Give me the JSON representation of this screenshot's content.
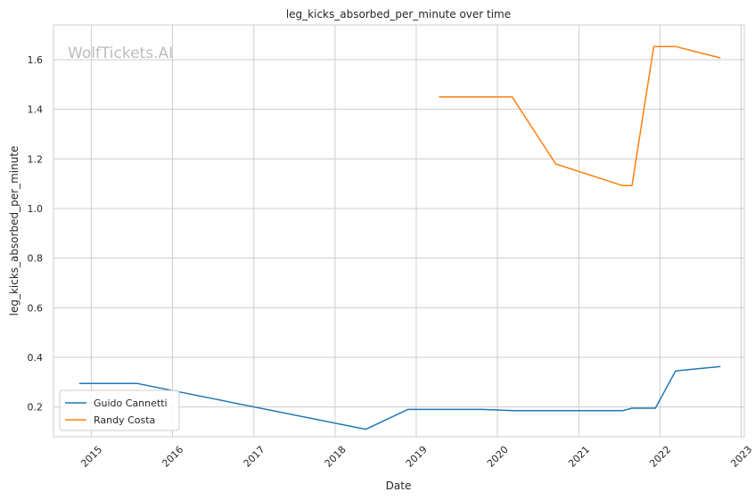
{
  "chart_data": {
    "type": "line",
    "title": "leg_kicks_absorbed_per_minute over time",
    "xlabel": "Date",
    "ylabel": "leg_kicks_absorbed_per_minute",
    "watermark": "WolfTickets.AI",
    "x_ticks": [
      "2015",
      "2016",
      "2017",
      "2018",
      "2019",
      "2020",
      "2021",
      "2022",
      "2023"
    ],
    "y_ticks": [
      "0.2",
      "0.4",
      "0.6",
      "0.8",
      "1.0",
      "1.2",
      "1.4",
      "1.6"
    ],
    "xlim": [
      "2014-07-15",
      "2023-01-15"
    ],
    "ylim": [
      0.08,
      1.74
    ],
    "grid": true,
    "legend_position": "lower-left",
    "series": [
      {
        "name": "Guido Cannetti",
        "color": "#1f77b4",
        "points": [
          [
            "2014-11-08",
            0.295
          ],
          [
            "2015-07-25",
            0.295
          ],
          [
            "2018-05-19",
            0.11
          ],
          [
            "2018-11-24",
            0.19
          ],
          [
            "2019-10-26",
            0.19
          ],
          [
            "2020-03-14",
            0.185
          ],
          [
            "2021-07-17",
            0.185
          ],
          [
            "2021-08-28",
            0.195
          ],
          [
            "2021-12-11",
            0.195
          ],
          [
            "2022-03-12",
            0.345
          ],
          [
            "2022-09-30",
            0.363
          ]
        ]
      },
      {
        "name": "Randy Costa",
        "color": "#ff7f0e",
        "points": [
          [
            "2019-04-13",
            1.45
          ],
          [
            "2020-03-07",
            1.45
          ],
          [
            "2020-09-19",
            1.18
          ],
          [
            "2021-07-17",
            1.092
          ],
          [
            "2021-08-28",
            1.092
          ],
          [
            "2021-12-04",
            1.653
          ],
          [
            "2022-03-12",
            1.653
          ],
          [
            "2022-09-30",
            1.607
          ]
        ]
      }
    ]
  }
}
